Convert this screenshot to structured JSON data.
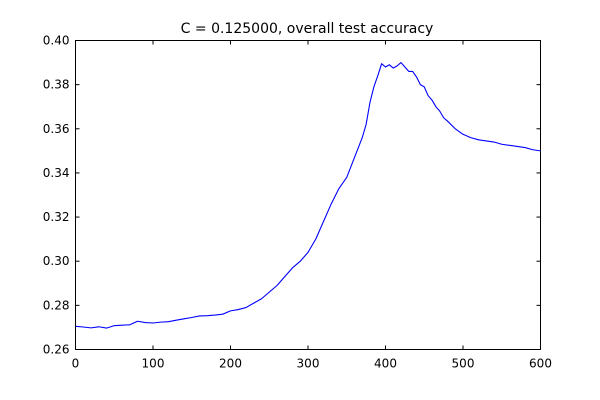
{
  "chart_data": {
    "type": "line",
    "title": "C = 0.125000, overall test accuracy",
    "xlabel": "",
    "ylabel": "",
    "xlim": [
      0,
      600
    ],
    "ylim": [
      0.26,
      0.4
    ],
    "x_ticks": [
      0,
      100,
      200,
      300,
      400,
      500,
      600
    ],
    "y_ticks": [
      0.26,
      0.28,
      0.3,
      0.32,
      0.34,
      0.36,
      0.38,
      0.4
    ],
    "x_tick_labels": [
      "0",
      "100",
      "200",
      "300",
      "400",
      "500",
      "600"
    ],
    "y_tick_labels": [
      "0.26",
      "0.28",
      "0.30",
      "0.32",
      "0.34",
      "0.36",
      "0.38",
      "0.40"
    ],
    "grid": false,
    "legend": "none",
    "line_color": "#0000ff",
    "series": [
      {
        "x": [
          0,
          10,
          20,
          30,
          40,
          50,
          60,
          70,
          80,
          90,
          100,
          110,
          120,
          130,
          140,
          150,
          160,
          170,
          180,
          190,
          200,
          210,
          220,
          230,
          240,
          250,
          260,
          270,
          280,
          290,
          300,
          310,
          320,
          330,
          340,
          350,
          360,
          370,
          375,
          380,
          385,
          390,
          395,
          400,
          405,
          410,
          415,
          420,
          425,
          430,
          435,
          440,
          445,
          450,
          455,
          460,
          465,
          470,
          475,
          480,
          490,
          500,
          510,
          520,
          530,
          540,
          550,
          560,
          570,
          580,
          590,
          600
        ],
        "y": [
          0.2705,
          0.2702,
          0.2698,
          0.2703,
          0.2697,
          0.2708,
          0.271,
          0.2712,
          0.2728,
          0.2722,
          0.272,
          0.2724,
          0.2726,
          0.2733,
          0.2739,
          0.2745,
          0.2752,
          0.2753,
          0.2756,
          0.276,
          0.2775,
          0.2781,
          0.279,
          0.281,
          0.283,
          0.286,
          0.289,
          0.293,
          0.297,
          0.3,
          0.304,
          0.31,
          0.318,
          0.326,
          0.333,
          0.338,
          0.347,
          0.356,
          0.362,
          0.372,
          0.379,
          0.384,
          0.3895,
          0.388,
          0.389,
          0.3875,
          0.3885,
          0.39,
          0.388,
          0.386,
          0.386,
          0.3835,
          0.38,
          0.379,
          0.375,
          0.373,
          0.37,
          0.368,
          0.365,
          0.3635,
          0.36,
          0.3575,
          0.356,
          0.355,
          0.3545,
          0.354,
          0.353,
          0.3525,
          0.352,
          0.3515,
          0.3505,
          0.35
        ]
      }
    ]
  }
}
